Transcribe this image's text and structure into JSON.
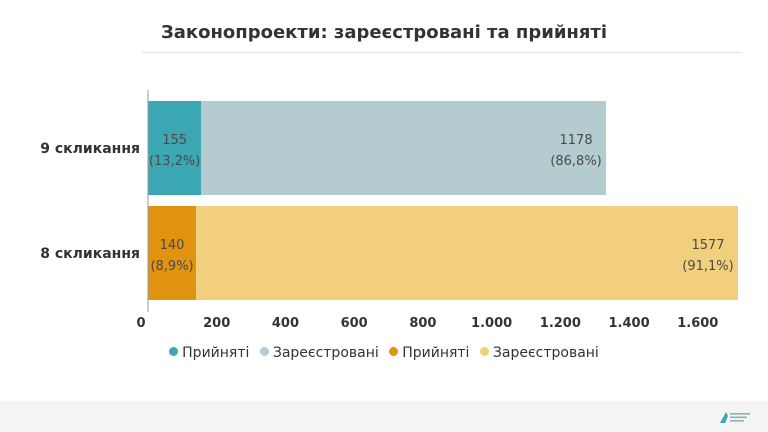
{
  "chart_data": {
    "type": "bar",
    "orientation": "horizontal",
    "stacked": true,
    "title": "Законопроекти: зареєстровані та прийняті",
    "categories": [
      "9 скликання",
      "8 скликання"
    ],
    "series": [
      {
        "name": "Прийняті",
        "category": "9 скликання",
        "value": 155,
        "label": "155",
        "pct": "(13,2%)",
        "color": "#3aa7b3"
      },
      {
        "name": "Зареєстровані",
        "category": "9 скликання",
        "value": 1178,
        "label": "1178",
        "pct": "(86,8%)",
        "color": "#b4cbd0"
      },
      {
        "name": "Прийняті",
        "category": "8 скликання",
        "value": 140,
        "label": "140",
        "pct": "(8,9%)",
        "color": "#e0930f"
      },
      {
        "name": "Зареєстровані",
        "category": "8 скликання",
        "value": 1577,
        "label": "1577",
        "pct": "(91,1%)",
        "color": "#f2cf7c"
      }
    ],
    "xaxis": {
      "ticks": [
        0,
        200,
        400,
        600,
        800,
        1000,
        1200,
        1400,
        1600
      ],
      "tick_labels": [
        "0",
        "200",
        "400",
        "600",
        "800",
        "1.000",
        "1.200",
        "1.400",
        "1.600"
      ],
      "range": [
        0,
        1717
      ]
    },
    "legend_position": "bottom",
    "grid": false
  },
  "footer": {
    "logo_icon": "organization-logo-icon"
  }
}
